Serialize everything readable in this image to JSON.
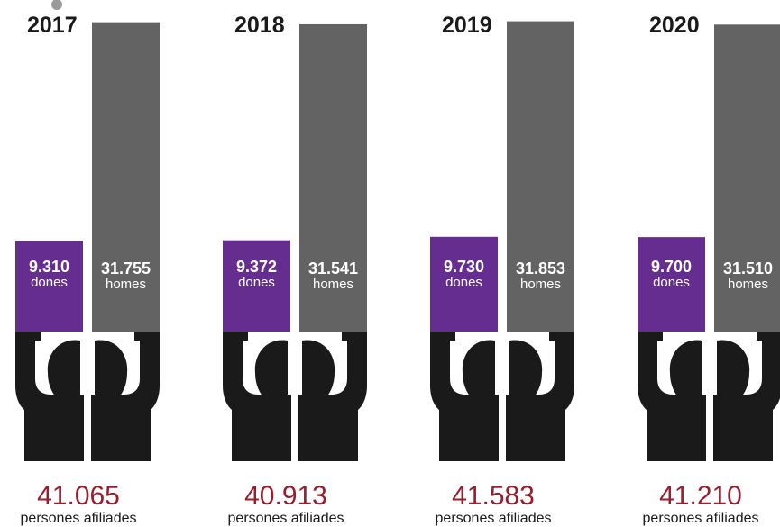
{
  "chart_data": {
    "type": "bar",
    "categories": [
      "2017",
      "2018",
      "2019",
      "2020"
    ],
    "series": [
      {
        "name": "dones",
        "values": [
          9310,
          9372,
          9730,
          9700
        ],
        "display": [
          "9.310",
          "9.372",
          "9.730",
          "9.700"
        ],
        "label": "dones",
        "color": "#662d91"
      },
      {
        "name": "homes",
        "values": [
          31755,
          31541,
          31853,
          31510
        ],
        "display": [
          "31.755",
          "31.541",
          "31.853",
          "31.510"
        ],
        "label": "homes",
        "color": "#636363"
      }
    ],
    "totals": {
      "values": [
        41065,
        40913,
        41583,
        41210
      ],
      "display": [
        "41.065",
        "40.913",
        "41.583",
        "41.210"
      ],
      "label": "persones afiliades",
      "color": "#9b1c2c"
    },
    "icon": "person-holding-bars-icon"
  }
}
